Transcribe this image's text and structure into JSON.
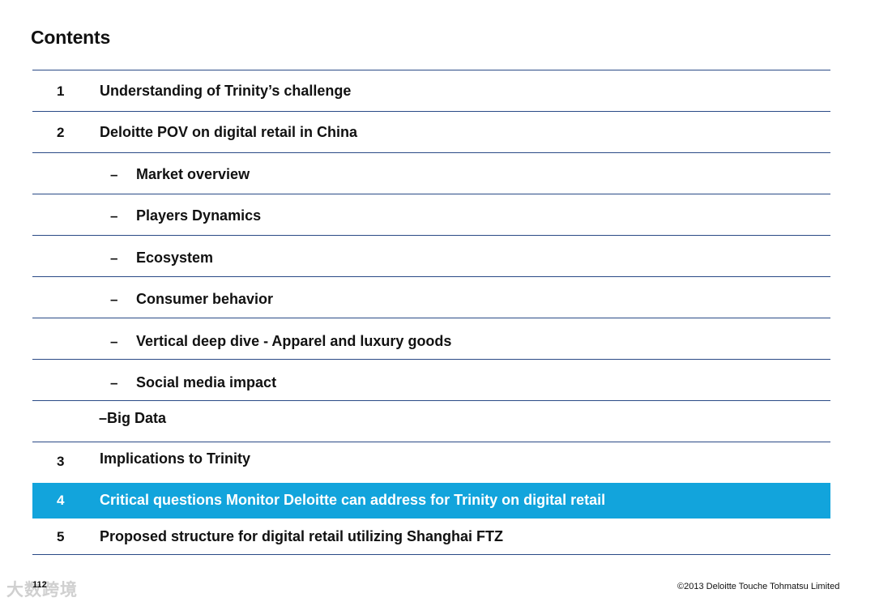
{
  "title": "Contents",
  "items": [
    {
      "num": "1",
      "label": "Understanding of Trinity’s challenge"
    },
    {
      "num": "2",
      "label": "Deloitte POV on digital retail in China"
    },
    {
      "dash": "–",
      "label": "Market overview"
    },
    {
      "dash": "–",
      "label": "Players Dynamics"
    },
    {
      "dash": "–",
      "label": "Ecosystem"
    },
    {
      "dash": "–",
      "label": "Consumer behavior"
    },
    {
      "dash": "–",
      "label": "Vertical deep dive - Apparel and luxury goods"
    },
    {
      "dash": "–",
      "label": "Social media impact"
    },
    {
      "label": "–Big Data"
    },
    {
      "num": "3",
      "label": "Implications to Trinity"
    },
    {
      "num": "4",
      "label": "Critical questions Monitor Deloitte can address for Trinity on digital retail",
      "highlighted": true
    },
    {
      "num": "5",
      "label": "Proposed structure for digital retail utilizing Shanghai FTZ"
    }
  ],
  "footer": {
    "page_number": "112",
    "copyright": "©2013 Deloitte Touche Tohmatsu Limited",
    "watermark": "大数跨境"
  },
  "colors": {
    "highlight": "#12a4dc",
    "rule": "#2a4a86"
  }
}
